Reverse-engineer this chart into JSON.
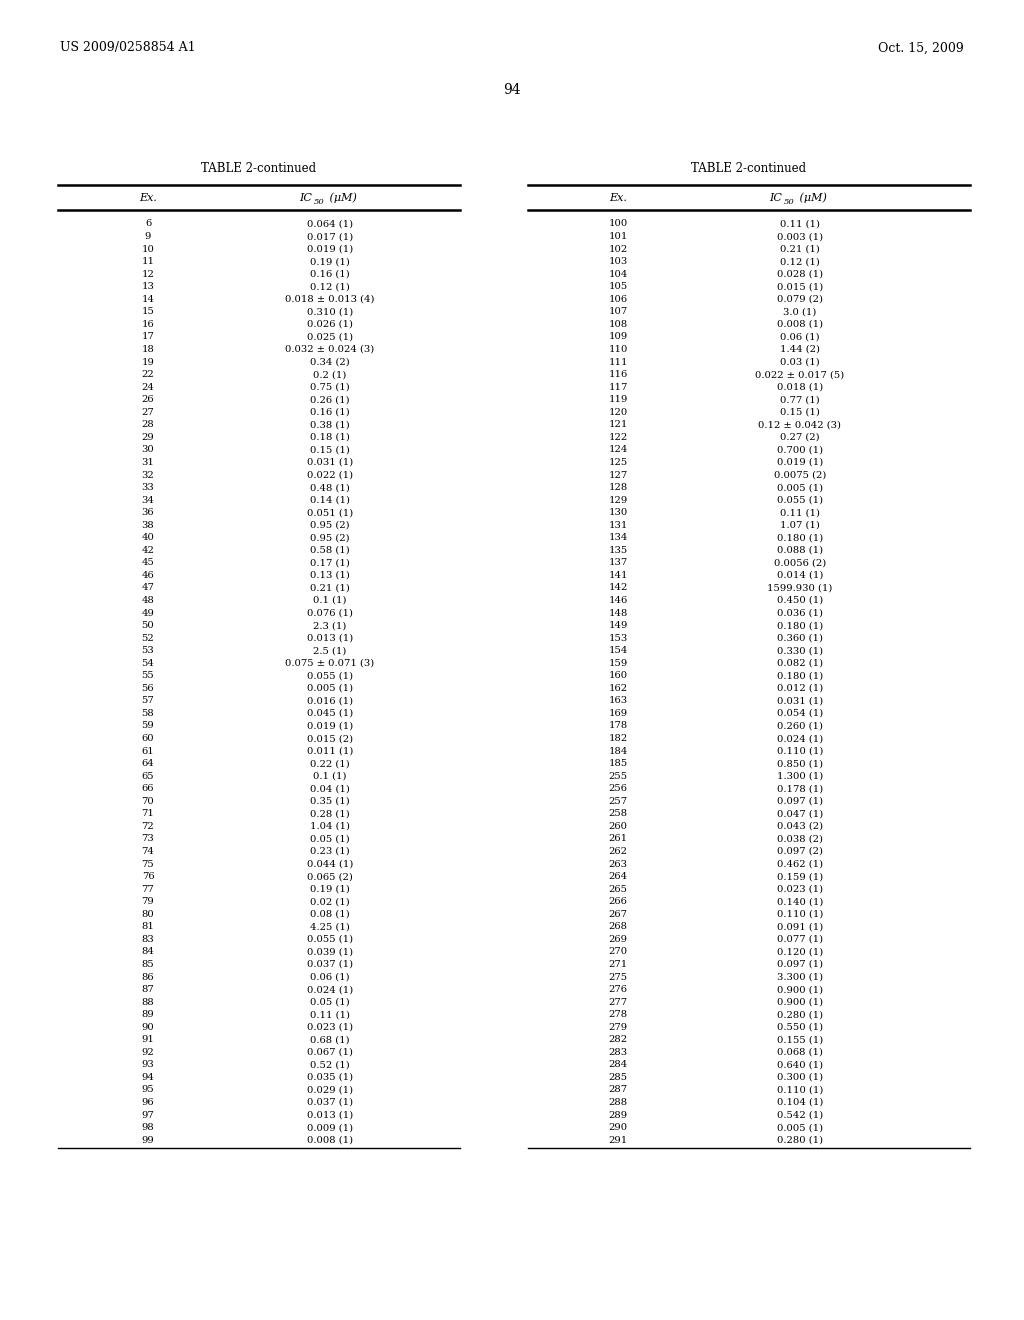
{
  "header_left": "US 2009/0258854 A1",
  "header_right": "Oct. 15, 2009",
  "page_number": "94",
  "table_title": "TABLE 2-continued",
  "col1_header": "Ex.",
  "left_data": [
    [
      "6",
      "0.064 (1)"
    ],
    [
      "9",
      "0.017 (1)"
    ],
    [
      "10",
      "0.019 (1)"
    ],
    [
      "11",
      "0.19 (1)"
    ],
    [
      "12",
      "0.16 (1)"
    ],
    [
      "13",
      "0.12 (1)"
    ],
    [
      "14",
      "0.018 ± 0.013 (4)"
    ],
    [
      "15",
      "0.310 (1)"
    ],
    [
      "16",
      "0.026 (1)"
    ],
    [
      "17",
      "0.025 (1)"
    ],
    [
      "18",
      "0.032 ± 0.024 (3)"
    ],
    [
      "19",
      "0.34 (2)"
    ],
    [
      "22",
      "0.2 (1)"
    ],
    [
      "24",
      "0.75 (1)"
    ],
    [
      "26",
      "0.26 (1)"
    ],
    [
      "27",
      "0.16 (1)"
    ],
    [
      "28",
      "0.38 (1)"
    ],
    [
      "29",
      "0.18 (1)"
    ],
    [
      "30",
      "0.15 (1)"
    ],
    [
      "31",
      "0.031 (1)"
    ],
    [
      "32",
      "0.022 (1)"
    ],
    [
      "33",
      "0.48 (1)"
    ],
    [
      "34",
      "0.14 (1)"
    ],
    [
      "36",
      "0.051 (1)"
    ],
    [
      "38",
      "0.95 (2)"
    ],
    [
      "40",
      "0.95 (2)"
    ],
    [
      "42",
      "0.58 (1)"
    ],
    [
      "45",
      "0.17 (1)"
    ],
    [
      "46",
      "0.13 (1)"
    ],
    [
      "47",
      "0.21 (1)"
    ],
    [
      "48",
      "0.1 (1)"
    ],
    [
      "49",
      "0.076 (1)"
    ],
    [
      "50",
      "2.3 (1)"
    ],
    [
      "52",
      "0.013 (1)"
    ],
    [
      "53",
      "2.5 (1)"
    ],
    [
      "54",
      "0.075 ± 0.071 (3)"
    ],
    [
      "55",
      "0.055 (1)"
    ],
    [
      "56",
      "0.005 (1)"
    ],
    [
      "57",
      "0.016 (1)"
    ],
    [
      "58",
      "0.045 (1)"
    ],
    [
      "59",
      "0.019 (1)"
    ],
    [
      "60",
      "0.015 (2)"
    ],
    [
      "61",
      "0.011 (1)"
    ],
    [
      "64",
      "0.22 (1)"
    ],
    [
      "65",
      "0.1 (1)"
    ],
    [
      "66",
      "0.04 (1)"
    ],
    [
      "70",
      "0.35 (1)"
    ],
    [
      "71",
      "0.28 (1)"
    ],
    [
      "72",
      "1.04 (1)"
    ],
    [
      "73",
      "0.05 (1)"
    ],
    [
      "74",
      "0.23 (1)"
    ],
    [
      "75",
      "0.044 (1)"
    ],
    [
      "76",
      "0.065 (2)"
    ],
    [
      "77",
      "0.19 (1)"
    ],
    [
      "79",
      "0.02 (1)"
    ],
    [
      "80",
      "0.08 (1)"
    ],
    [
      "81",
      "4.25 (1)"
    ],
    [
      "83",
      "0.055 (1)"
    ],
    [
      "84",
      "0.039 (1)"
    ],
    [
      "85",
      "0.037 (1)"
    ],
    [
      "86",
      "0.06 (1)"
    ],
    [
      "87",
      "0.024 (1)"
    ],
    [
      "88",
      "0.05 (1)"
    ],
    [
      "89",
      "0.11 (1)"
    ],
    [
      "90",
      "0.023 (1)"
    ],
    [
      "91",
      "0.68 (1)"
    ],
    [
      "92",
      "0.067 (1)"
    ],
    [
      "93",
      "0.52 (1)"
    ],
    [
      "94",
      "0.035 (1)"
    ],
    [
      "95",
      "0.029 (1)"
    ],
    [
      "96",
      "0.037 (1)"
    ],
    [
      "97",
      "0.013 (1)"
    ],
    [
      "98",
      "0.009 (1)"
    ],
    [
      "99",
      "0.008 (1)"
    ]
  ],
  "right_data": [
    [
      "100",
      "0.11 (1)"
    ],
    [
      "101",
      "0.003 (1)"
    ],
    [
      "102",
      "0.21 (1)"
    ],
    [
      "103",
      "0.12 (1)"
    ],
    [
      "104",
      "0.028 (1)"
    ],
    [
      "105",
      "0.015 (1)"
    ],
    [
      "106",
      "0.079 (2)"
    ],
    [
      "107",
      "3.0 (1)"
    ],
    [
      "108",
      "0.008 (1)"
    ],
    [
      "109",
      "0.06 (1)"
    ],
    [
      "110",
      "1.44 (2)"
    ],
    [
      "111",
      "0.03 (1)"
    ],
    [
      "116",
      "0.022 ± 0.017 (5)"
    ],
    [
      "117",
      "0.018 (1)"
    ],
    [
      "119",
      "0.77 (1)"
    ],
    [
      "120",
      "0.15 (1)"
    ],
    [
      "121",
      "0.12 ± 0.042 (3)"
    ],
    [
      "122",
      "0.27 (2)"
    ],
    [
      "124",
      "0.700 (1)"
    ],
    [
      "125",
      "0.019 (1)"
    ],
    [
      "127",
      "0.0075 (2)"
    ],
    [
      "128",
      "0.005 (1)"
    ],
    [
      "129",
      "0.055 (1)"
    ],
    [
      "130",
      "0.11 (1)"
    ],
    [
      "131",
      "1.07 (1)"
    ],
    [
      "134",
      "0.180 (1)"
    ],
    [
      "135",
      "0.088 (1)"
    ],
    [
      "137",
      "0.0056 (2)"
    ],
    [
      "141",
      "0.014 (1)"
    ],
    [
      "142",
      "1599.930 (1)"
    ],
    [
      "146",
      "0.450 (1)"
    ],
    [
      "148",
      "0.036 (1)"
    ],
    [
      "149",
      "0.180 (1)"
    ],
    [
      "153",
      "0.360 (1)"
    ],
    [
      "154",
      "0.330 (1)"
    ],
    [
      "159",
      "0.082 (1)"
    ],
    [
      "160",
      "0.180 (1)"
    ],
    [
      "162",
      "0.012 (1)"
    ],
    [
      "163",
      "0.031 (1)"
    ],
    [
      "169",
      "0.054 (1)"
    ],
    [
      "178",
      "0.260 (1)"
    ],
    [
      "182",
      "0.024 (1)"
    ],
    [
      "184",
      "0.110 (1)"
    ],
    [
      "185",
      "0.850 (1)"
    ],
    [
      "255",
      "1.300 (1)"
    ],
    [
      "256",
      "0.178 (1)"
    ],
    [
      "257",
      "0.097 (1)"
    ],
    [
      "258",
      "0.047 (1)"
    ],
    [
      "260",
      "0.043 (2)"
    ],
    [
      "261",
      "0.038 (2)"
    ],
    [
      "262",
      "0.097 (2)"
    ],
    [
      "263",
      "0.462 (1)"
    ],
    [
      "264",
      "0.159 (1)"
    ],
    [
      "265",
      "0.023 (1)"
    ],
    [
      "266",
      "0.140 (1)"
    ],
    [
      "267",
      "0.110 (1)"
    ],
    [
      "268",
      "0.091 (1)"
    ],
    [
      "269",
      "0.077 (1)"
    ],
    [
      "270",
      "0.120 (1)"
    ],
    [
      "271",
      "0.097 (1)"
    ],
    [
      "275",
      "3.300 (1)"
    ],
    [
      "276",
      "0.900 (1)"
    ],
    [
      "277",
      "0.900 (1)"
    ],
    [
      "278",
      "0.280 (1)"
    ],
    [
      "279",
      "0.550 (1)"
    ],
    [
      "282",
      "0.155 (1)"
    ],
    [
      "283",
      "0.068 (1)"
    ],
    [
      "284",
      "0.640 (1)"
    ],
    [
      "285",
      "0.300 (1)"
    ],
    [
      "287",
      "0.110 (1)"
    ],
    [
      "288",
      "0.104 (1)"
    ],
    [
      "289",
      "0.542 (1)"
    ],
    [
      "290",
      "0.005 (1)"
    ],
    [
      "291",
      "0.280 (1)"
    ]
  ],
  "bg_color": "#ffffff",
  "text_color": "#000000",
  "font_size": 7.2,
  "header_font_size": 8.0,
  "title_font_size": 8.5
}
